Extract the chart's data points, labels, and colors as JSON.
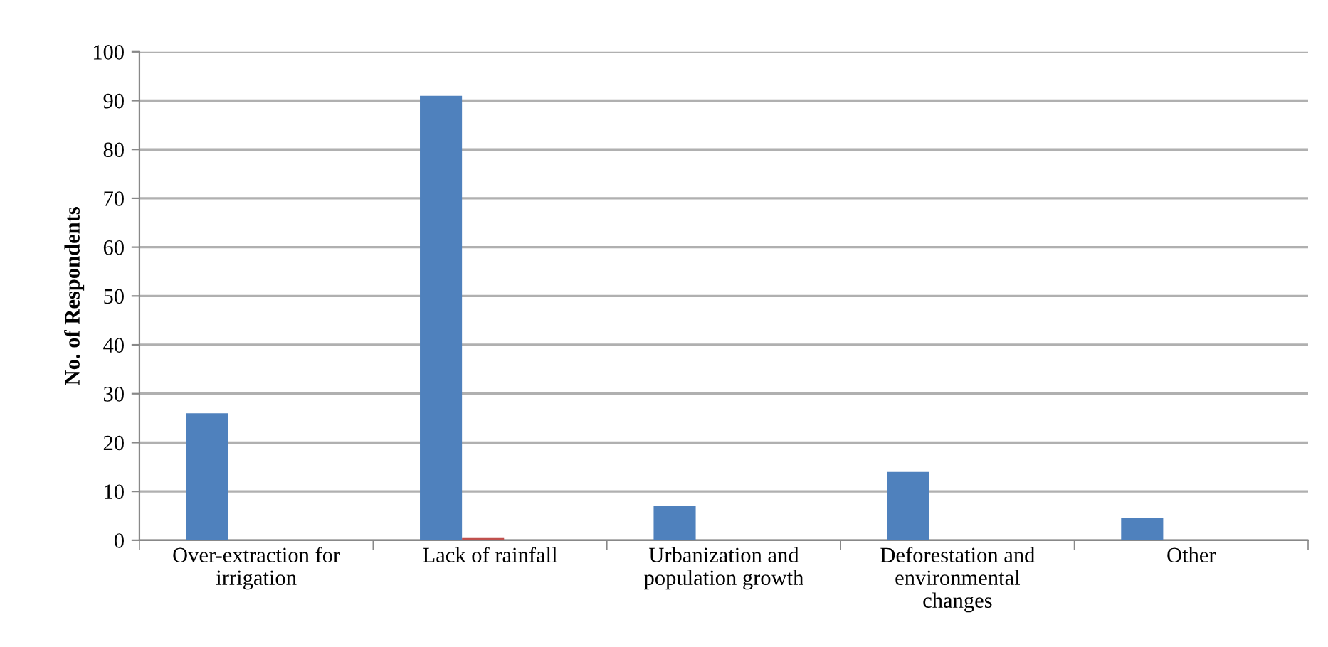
{
  "chart_data": {
    "type": "bar",
    "ylabel": "No. of Respondents",
    "categories": [
      "Over-extraction for\nirrigation",
      "Lack of rainfall",
      "Urbanization and\npopulation growth",
      "Deforestation and\nenvironmental\nchanges",
      "Other"
    ],
    "series": [
      {
        "color": "#4f81bd",
        "values": [
          26,
          91,
          7,
          14,
          4.5
        ]
      },
      {
        "color": "#c0504d",
        "values": [
          0,
          0.6,
          0,
          0,
          0
        ]
      }
    ],
    "ylim": [
      0,
      100
    ],
    "yticks": [
      0,
      10,
      20,
      30,
      40,
      50,
      60,
      70,
      80,
      90,
      100
    ],
    "grid": "y",
    "legend": false
  }
}
